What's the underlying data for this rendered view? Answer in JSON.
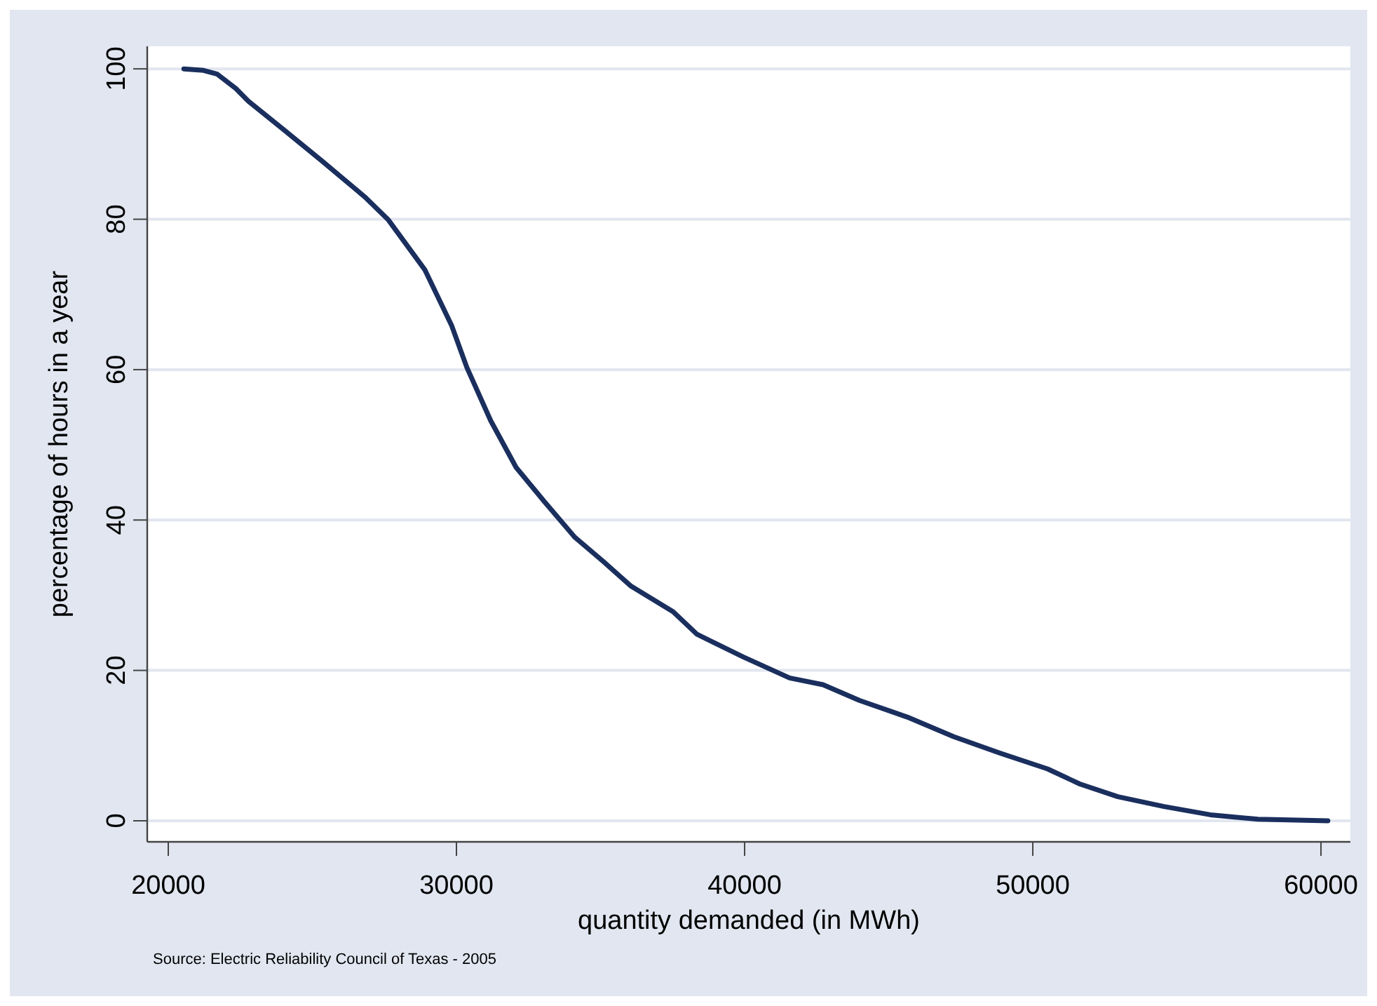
{
  "chart_data": {
    "type": "line",
    "xlabel": "quantity demanded (in MWh)",
    "ylabel": "percentage of hours in a year",
    "annotations": [
      "Source: Electric Reliability Council of Texas - 2005"
    ],
    "x": [
      20540,
      21220,
      21700,
      22340,
      22780,
      24040,
      25350,
      26810,
      27640,
      28900,
      29830,
      30360,
      31190,
      32070,
      33040,
      34110,
      35090,
      36060,
      37520,
      38350,
      39950,
      41560,
      42720,
      43990,
      45640,
      47250,
      48860,
      50510,
      51630,
      52950,
      54550,
      56160,
      57810,
      60240
    ],
    "series": [
      {
        "color": "#1a2f5e",
        "values": [
          100,
          99.8,
          99.3,
          97.4,
          95.7,
          91.8,
          87.7,
          83.0,
          79.9,
          73.3,
          65.9,
          60.3,
          53.2,
          47.0,
          42.5,
          37.7,
          34.5,
          31.2,
          27.8,
          24.8,
          21.8,
          19.0,
          18.1,
          16.0,
          13.8,
          11.2,
          9.0,
          6.9,
          4.9,
          3.2,
          1.9,
          0.8,
          0.2,
          0
        ]
      }
    ],
    "xlim": [
      19270,
      61020
    ],
    "xticks": [
      20000,
      30000,
      40000,
      50000,
      60000
    ],
    "ylim": [
      -2.8,
      103
    ],
    "yticks": [
      0,
      20,
      40,
      60,
      80,
      100
    ],
    "grid": "y",
    "marker": "none",
    "line_style": "solid"
  }
}
